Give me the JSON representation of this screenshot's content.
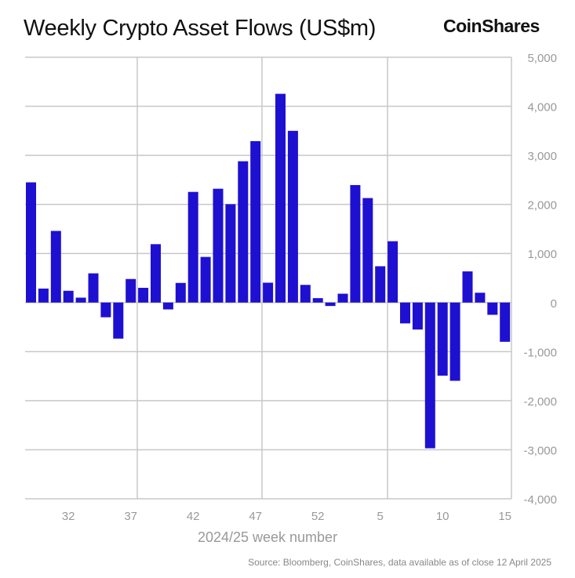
{
  "header": {
    "title": "Weekly Crypto Asset Flows (US$m)",
    "logo": "CoinShares"
  },
  "source": "Source: Bloomberg, CoinShares, data available as of close 12 April 2025",
  "colors": {
    "bar": "#1e10d0",
    "grid": "#c8c8c8",
    "tick": "#999999"
  },
  "chart_data": {
    "type": "bar",
    "title": "Weekly Crypto Asset Flows (US$m)",
    "xlabel": "2024/25 week number",
    "ylabel": "",
    "ylim": [
      -4000,
      5000
    ],
    "yticks": [
      5000,
      4000,
      3000,
      2000,
      1000,
      0,
      -1000,
      -2000,
      -3000,
      -4000
    ],
    "ytick_labels": [
      "5,000",
      "4,000",
      "3,000",
      "2,000",
      "1,000",
      "0",
      "-1,000",
      "-2,000",
      "-3,000",
      "-4,000"
    ],
    "xtick_labels": [
      "32",
      "37",
      "42",
      "47",
      "52",
      "5",
      "10",
      "15"
    ],
    "categories": [
      "29",
      "30",
      "31",
      "32",
      "33",
      "34",
      "35",
      "36",
      "37",
      "38",
      "39",
      "40",
      "41",
      "42",
      "43",
      "44",
      "45",
      "46",
      "47",
      "48",
      "49",
      "50",
      "51",
      "52",
      "1",
      "2",
      "3",
      "4",
      "5",
      "6",
      "7",
      "8",
      "9",
      "10",
      "11",
      "12",
      "13",
      "14",
      "15"
    ],
    "values": [
      2450,
      285,
      1460,
      240,
      100,
      595,
      -300,
      -735,
      480,
      300,
      1190,
      -140,
      400,
      2255,
      930,
      2320,
      2005,
      2880,
      3290,
      405,
      4255,
      3500,
      360,
      90,
      -70,
      180,
      2395,
      2130,
      740,
      1250,
      -425,
      -550,
      -2970,
      -1490,
      -1595,
      635,
      200,
      -250,
      -800
    ],
    "grid": true,
    "legend": "none"
  }
}
